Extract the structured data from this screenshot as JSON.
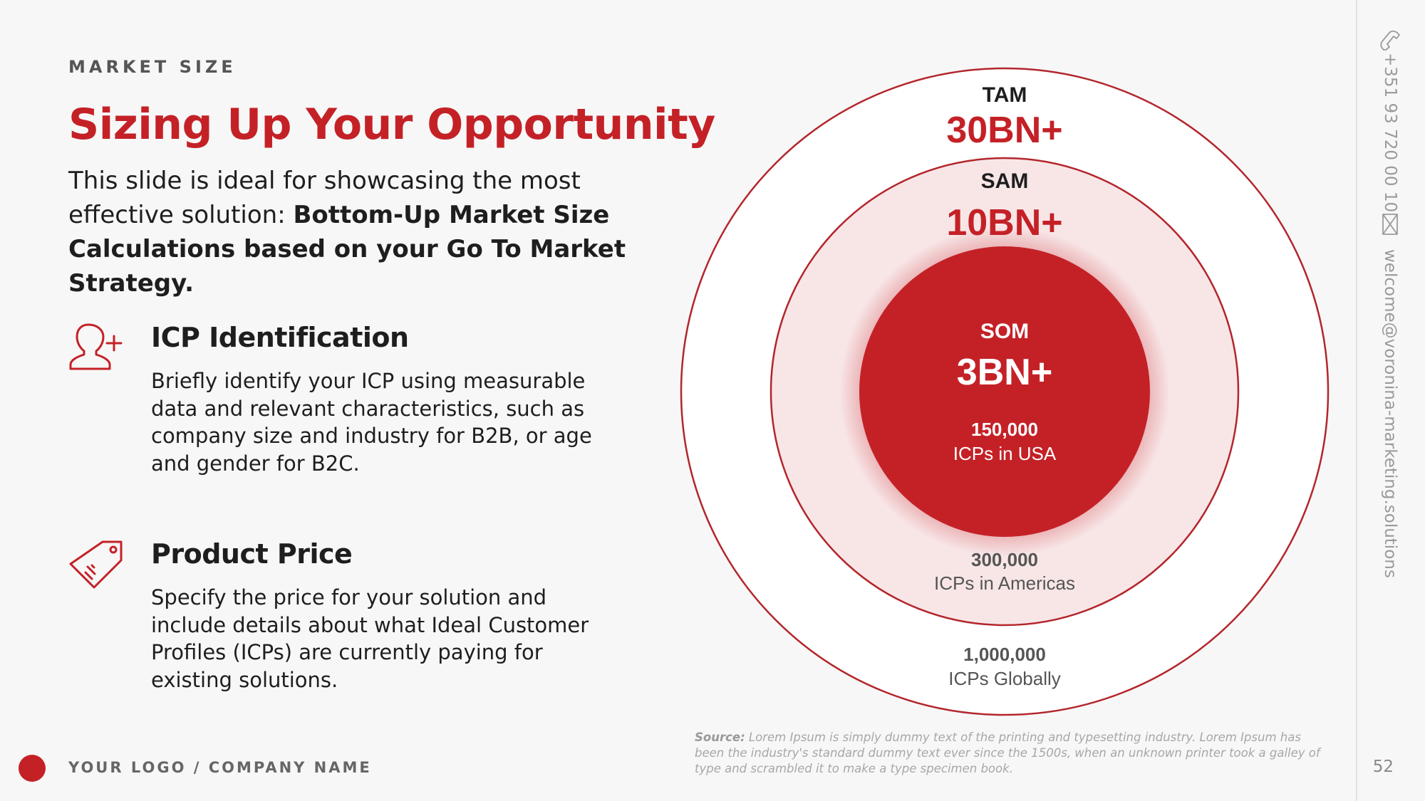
{
  "header": {
    "eyebrow": "MARKET SIZE",
    "title": "Sizing Up Your Opportunity",
    "intro_plain": "This slide is ideal for showcasing the most effective solution: ",
    "intro_bold": "Bottom-Up Market Size Calculations based on your Go To Market Strategy."
  },
  "features": [
    {
      "icon": "add-user-icon",
      "title": "ICP Identification",
      "text": "Briefly identify your ICP using measurable data and relevant characteristics, such as company size and industry for B2B, or age and gender for B2C."
    },
    {
      "icon": "price-tag-icon",
      "title": "Product Price",
      "text": "Specify the price for your solution and include details about what Ideal Customer Profiles (ICPs) are currently paying for existing solutions."
    }
  ],
  "diagram": {
    "tam": {
      "label": "TAM",
      "value": "30BN+",
      "count": "1,000,000",
      "count_label": "ICPs Globally"
    },
    "sam": {
      "label": "SAM",
      "value": "10BN+",
      "count": "300,000",
      "count_label": "ICPs in Americas"
    },
    "som": {
      "label": "SOM",
      "value": "3BN+",
      "count": "150,000",
      "count_label": "ICPs in USA"
    }
  },
  "sidebar": {
    "phone": "+351 93 720 00 10",
    "email": "welcome@voronina-marketing.solutions",
    "phone_icon": "phone-icon",
    "email_icon": "mail-icon"
  },
  "footer": {
    "logo_text": "YOUR LOGO / COMPANY NAME",
    "source_label": "Source:",
    "source_text": " Lorem Ipsum is simply dummy text of the printing and typesetting industry. Lorem Ipsum has been the industry's standard dummy text ever since the 1500s, when an unknown printer took a galley of type and scrambled it to make a type specimen book.",
    "page_number": "52"
  },
  "colors": {
    "accent": "#c42127",
    "sam_fill": "#f8e6e7",
    "background": "#f7f7f7"
  }
}
